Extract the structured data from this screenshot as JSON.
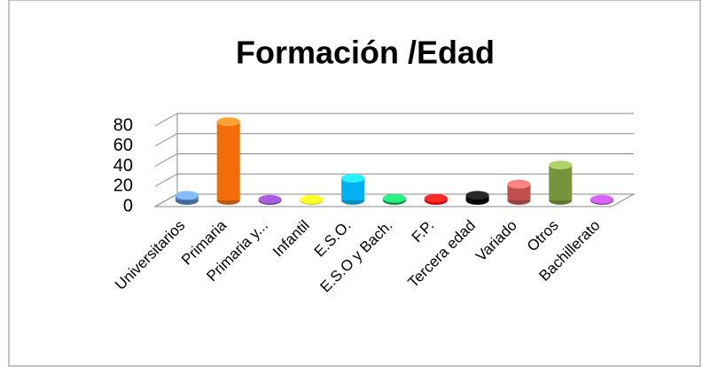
{
  "chart_data": {
    "type": "bar3d",
    "title": "Formación /Edad",
    "categories": [
      "Universitarios",
      "Primaria",
      "Primaria y...",
      "Infantil",
      "E.S.O.",
      "E.S.O y Bach.",
      "F.P.",
      "Tercera edad",
      "Variado",
      "Otros",
      "Bachillerato"
    ],
    "values": [
      5,
      78,
      1,
      1,
      22,
      2,
      2,
      5,
      16,
      35,
      1
    ],
    "colors": [
      "#4f81bd",
      "#f36c0a",
      "#7030a0",
      "#ffff00",
      "#00b0f0",
      "#00b050",
      "#ff0000",
      "#000000",
      "#c0504d",
      "#77933c",
      "#9933cc"
    ],
    "ylim": [
      0,
      80
    ],
    "yticks": [
      0,
      20,
      40,
      60,
      80
    ],
    "grid": true
  }
}
